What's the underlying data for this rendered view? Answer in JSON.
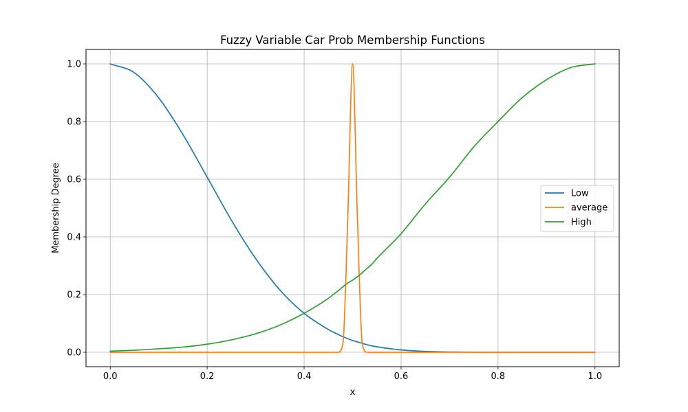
{
  "chart_data": {
    "type": "line",
    "title": "Fuzzy Variable Car Prob Membership Functions",
    "xlabel": "x",
    "ylabel": "Membership Degree",
    "xlim": [
      -0.05,
      1.05
    ],
    "ylim": [
      -0.05,
      1.05
    ],
    "xticks": [
      0.0,
      0.2,
      0.4,
      0.6,
      0.8,
      1.0
    ],
    "xtick_labels": [
      "0.0",
      "0.2",
      "0.4",
      "0.6",
      "0.8",
      "1.0"
    ],
    "yticks": [
      0.0,
      0.2,
      0.4,
      0.6,
      0.8,
      1.0
    ],
    "ytick_labels": [
      "0.0",
      "0.2",
      "0.4",
      "0.6",
      "0.8",
      "1.0"
    ],
    "grid": true,
    "legend_position": "center-right",
    "x": [
      0.0,
      0.05,
      0.1,
      0.15,
      0.2,
      0.25,
      0.3,
      0.35,
      0.4,
      0.45,
      0.46,
      0.47,
      0.48,
      0.49,
      0.5,
      0.51,
      0.52,
      0.53,
      0.54,
      0.55,
      0.6,
      0.65,
      0.7,
      0.75,
      0.8,
      0.85,
      0.9,
      0.95,
      1.0
    ],
    "series": [
      {
        "name": "Low",
        "color": "#1f77b4",
        "values": [
          1.0,
          0.969,
          0.882,
          0.755,
          0.607,
          0.458,
          0.325,
          0.216,
          0.135,
          0.079,
          0.07,
          0.062,
          0.054,
          0.047,
          0.041,
          0.036,
          0.031,
          0.026,
          0.022,
          0.019,
          0.008,
          0.003,
          0.001,
          0.0004,
          0.0001,
          3e-05,
          1e-05,
          0.0,
          0.0
        ]
      },
      {
        "name": "average",
        "color": "#ff7f0e",
        "values": [
          0.0,
          0.0,
          0.0,
          0.0,
          0.0,
          0.0,
          0.0,
          0.0,
          0.0,
          0.0,
          0.0,
          0.0,
          0.03,
          0.46,
          1.0,
          0.46,
          0.03,
          0.0,
          0.0,
          0.0,
          0.0,
          0.0,
          0.0,
          0.0,
          0.0,
          0.0,
          0.0,
          0.0,
          0.0
        ]
      },
      {
        "name": "High",
        "color": "#2ca02c",
        "values": [
          0.004,
          0.007,
          0.012,
          0.018,
          0.028,
          0.043,
          0.064,
          0.094,
          0.135,
          0.187,
          0.2,
          0.213,
          0.227,
          0.24,
          0.25,
          0.262,
          0.276,
          0.291,
          0.306,
          0.325,
          0.411,
          0.514,
          0.607,
          0.712,
          0.8,
          0.883,
          0.945,
          0.987,
          1.0
        ]
      }
    ]
  }
}
